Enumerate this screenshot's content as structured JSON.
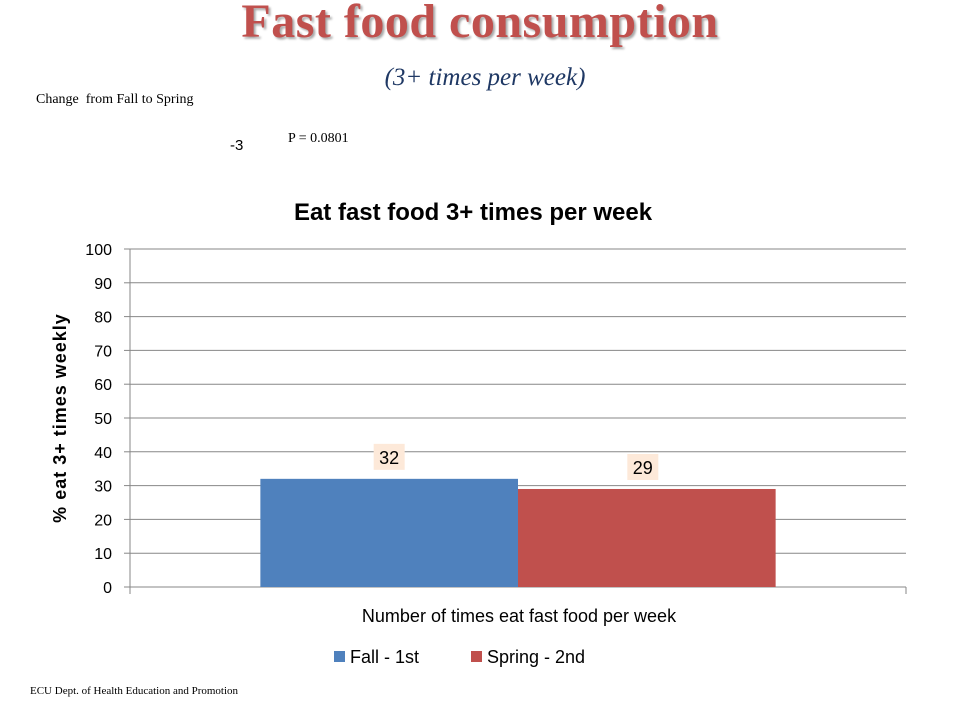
{
  "slide": {
    "title": "Fast food consumption",
    "subtitle": "(3+ times per week)",
    "change_label": "Change  from Fall to Spring",
    "change_value": "-3",
    "p_value": "P = 0.0801",
    "footer": "ECU Dept. of Health Education and Promotion"
  },
  "colors": {
    "title": "#c0504d",
    "subtitle": "#1f3864",
    "series_fall": "#4f81bd",
    "series_spring": "#c0504d",
    "data_label_bg": "#fde9d9"
  },
  "chart_data": {
    "type": "bar",
    "title": "Eat fast food 3+ times per week",
    "xlabel": "Number of times eat fast food per week",
    "ylabel": "% eat 3+ times weekly",
    "categories": [
      ""
    ],
    "series": [
      {
        "name": "Fall - 1st",
        "values": [
          32
        ],
        "data_label": "32",
        "color": "#4f81bd"
      },
      {
        "name": "Spring - 2nd",
        "values": [
          29
        ],
        "data_label": "29",
        "color": "#c0504d"
      }
    ],
    "ylim": [
      0,
      100
    ],
    "yticks": [
      0,
      10,
      20,
      30,
      40,
      50,
      60,
      70,
      80,
      90,
      100
    ],
    "grid": true,
    "legend_position": "bottom"
  }
}
